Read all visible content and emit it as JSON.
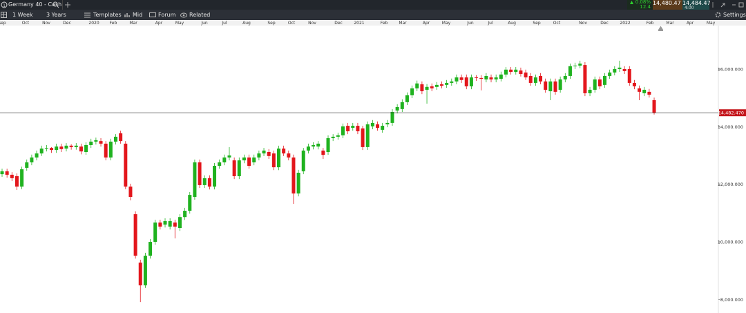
{
  "header": {
    "title": "Germany 40 - Cash",
    "quote": {
      "change": "0.08%",
      "points": "12.4",
      "sell": "14,480.47",
      "buy": "14,484.47",
      "time": "4:00"
    }
  },
  "toolbar": {
    "interval": "1 Week",
    "range": "3 Years",
    "templates": "Templates",
    "price_type": "Mid",
    "forum": "Forum",
    "related": "Related",
    "settings": "Settings"
  },
  "chart_data": {
    "type": "candlestick",
    "up_color": "#1fb21f",
    "down_color": "#e3161c",
    "open": [
      12350,
      12450,
      12330,
      12280,
      11920,
      12570,
      12760,
      12930,
      13070,
      13240,
      13260,
      13190,
      13310,
      13240,
      13340,
      13290,
      13310,
      13120,
      13360,
      13480,
      13500,
      13410,
      12930,
      13480,
      13770,
      13410,
      11920,
      10960,
      9280,
      8490,
      9520,
      10000,
      10670,
      10600,
      10530,
      10670,
      10480,
      10860,
      11080,
      11560,
      12760,
      11970,
      12210,
      11920,
      12640,
      12760,
      12930,
      12830,
      12280,
      12830,
      12930,
      12760,
      12930,
      13070,
      13120,
      13070,
      12590,
      13240,
      13070,
      12930,
      11680,
      12450,
      13170,
      13310,
      13310,
      13170,
      13120,
      13600,
      13650,
      13700,
      14030,
      13960,
      14030,
      13940,
      13290,
      14010,
      14080,
      13890,
      14080,
      14130,
      14560,
      14610,
      14850,
      15090,
      15330,
      15470,
      15280,
      15400,
      15380,
      15470,
      15450,
      15520,
      15570,
      15710,
      15710,
      15400,
      15710,
      15690,
      15640,
      15710,
      15640,
      15660,
      15810,
      15980,
      15900,
      15950,
      15880,
      15760,
      15520,
      15760,
      15570,
      15230,
      15570,
      15280,
      15640,
      15760,
      16100,
      16120,
      16140,
      15160,
      15280,
      15640,
      15450,
      15760,
      15880,
      16000,
      16000,
      16000,
      15520,
      15330,
      15160,
      15210,
      14920
    ],
    "high": [
      12540,
      12540,
      12420,
      12380,
      12610,
      12860,
      13030,
      13170,
      13340,
      13360,
      13290,
      13410,
      13410,
      13430,
      13390,
      13430,
      13410,
      13460,
      13580,
      13620,
      13600,
      13500,
      13580,
      13740,
      13860,
      13500,
      12020,
      11060,
      9380,
      9620,
      10100,
      10770,
      10770,
      10820,
      10820,
      10770,
      10960,
      11180,
      11730,
      12860,
      12860,
      12310,
      12310,
      12740,
      12860,
      13030,
      13290,
      12930,
      12930,
      13030,
      13030,
      13030,
      13170,
      13260,
      13220,
      13170,
      13340,
      13340,
      13170,
      13030,
      12500,
      13260,
      13410,
      13460,
      13500,
      13260,
      13700,
      13740,
      13790,
      14110,
      14130,
      14130,
      14130,
      14030,
      14180,
      14230,
      14180,
      14130,
      14230,
      14610,
      14780,
      14950,
      15190,
      15430,
      15600,
      15570,
      15480,
      15500,
      15550,
      15570,
      15620,
      15670,
      15810,
      15810,
      15810,
      15810,
      15790,
      15790,
      15860,
      15810,
      15810,
      15910,
      16070,
      16070,
      16070,
      16050,
      15980,
      15860,
      15810,
      15860,
      15670,
      15670,
      15670,
      15740,
      15860,
      16190,
      16220,
      16290,
      16240,
      15380,
      15740,
      15740,
      15860,
      15980,
      16100,
      16290,
      16100,
      16100,
      15620,
      15430,
      15380,
      15310,
      15010
    ],
    "low": [
      12260,
      12230,
      12110,
      11800,
      11830,
      12470,
      12660,
      12830,
      12980,
      13140,
      13090,
      13090,
      13120,
      13140,
      13200,
      13200,
      13040,
      13020,
      13260,
      13380,
      13310,
      12830,
      12830,
      13380,
      13410,
      11830,
      11440,
      9420,
      7910,
      8400,
      9420,
      9900,
      10430,
      10500,
      10430,
      10120,
      10380,
      10760,
      10980,
      11460,
      11870,
      11870,
      11820,
      11820,
      12540,
      12660,
      12830,
      12180,
      12180,
      12730,
      12540,
      12660,
      12830,
      12980,
      12880,
      12490,
      12490,
      12980,
      12830,
      11320,
      11580,
      12350,
      13070,
      13210,
      13210,
      12880,
      13020,
      13500,
      13550,
      13600,
      13740,
      13860,
      13740,
      13190,
      13190,
      13910,
      13860,
      13790,
      13980,
      14030,
      14460,
      14510,
      14750,
      14990,
      15230,
      15130,
      14800,
      15230,
      15280,
      15330,
      15350,
      15420,
      15470,
      15520,
      15300,
      15300,
      15590,
      15260,
      15540,
      15540,
      15540,
      15570,
      15710,
      15810,
      15810,
      15740,
      15620,
      15420,
      15420,
      15470,
      15180,
      14920,
      15110,
      15180,
      15540,
      15660,
      16000,
      16030,
      15060,
      15060,
      15180,
      15300,
      15350,
      15660,
      15780,
      15900,
      15830,
      15420,
      15300,
      14920,
      15060,
      15010,
      14420
    ],
    "close": [
      12450,
      12330,
      12210,
      11920,
      12520,
      12760,
      12930,
      13070,
      13240,
      13260,
      13190,
      13310,
      13220,
      13340,
      13290,
      13340,
      13140,
      13360,
      13480,
      13530,
      13410,
      12930,
      13480,
      13650,
      13500,
      11920,
      11560,
      9520,
      8490,
      9520,
      10000,
      10670,
      10530,
      10720,
      10720,
      10530,
      10860,
      11080,
      11630,
      12760,
      11970,
      12210,
      11920,
      12640,
      12760,
      12930,
      13000,
      12280,
      12830,
      12930,
      12640,
      12930,
      13070,
      13170,
      12980,
      12590,
      13240,
      13070,
      12930,
      11680,
      12400,
      13170,
      13310,
      13360,
      13410,
      13020,
      13600,
      13650,
      13700,
      14010,
      13840,
      14030,
      13840,
      13290,
      14080,
      14130,
      13960,
      14030,
      14130,
      14510,
      14680,
      14850,
      15090,
      15330,
      15500,
      15230,
      15380,
      15330,
      15450,
      15420,
      15520,
      15570,
      15710,
      15620,
      15400,
      15710,
      15690,
      15660,
      15760,
      15640,
      15710,
      15810,
      15980,
      15900,
      15980,
      15830,
      15710,
      15520,
      15710,
      15570,
      15280,
      15570,
      15210,
      15640,
      15760,
      16100,
      16120,
      16190,
      15160,
      15280,
      15640,
      15400,
      15760,
      15880,
      16000,
      16050,
      15930,
      15520,
      15400,
      15210,
      15280,
      15110,
      14480
    ],
    "xlim": [
      -0.42,
      145
    ],
    "xticks": [
      {
        "value": 0,
        "label": "Sep"
      },
      {
        "value": 4.75,
        "label": "Oct"
      },
      {
        "value": 8.95,
        "label": "Nov"
      },
      {
        "value": 13.14,
        "label": "Dec"
      },
      {
        "value": 18.6,
        "label": "2020"
      },
      {
        "value": 22.51,
        "label": "Feb"
      },
      {
        "value": 26.57,
        "label": "Mar"
      },
      {
        "value": 31.74,
        "label": "Apr"
      },
      {
        "value": 35.94,
        "label": "May"
      },
      {
        "value": 40.97,
        "label": "Jun"
      },
      {
        "value": 45.02,
        "label": "Jul"
      },
      {
        "value": 49.5,
        "label": "Aug"
      },
      {
        "value": 54.53,
        "label": "Sep"
      },
      {
        "value": 58.59,
        "label": "Oct"
      },
      {
        "value": 62.78,
        "label": "Nov"
      },
      {
        "value": 68.1,
        "label": "Dec"
      },
      {
        "value": 72.29,
        "label": "2021"
      },
      {
        "value": 77.33,
        "label": "Feb"
      },
      {
        "value": 81.1,
        "label": "Mar"
      },
      {
        "value": 85.86,
        "label": "Apr"
      },
      {
        "value": 89.91,
        "label": "May"
      },
      {
        "value": 94.8,
        "label": "Jun"
      },
      {
        "value": 98.86,
        "label": "Jul"
      },
      {
        "value": 103.2,
        "label": "Aug"
      },
      {
        "value": 108.23,
        "label": "Sep"
      },
      {
        "value": 112.28,
        "label": "Oct"
      },
      {
        "value": 117.6,
        "label": "Nov"
      },
      {
        "value": 121.93,
        "label": "Dec"
      },
      {
        "value": 126.13,
        "label": "2022"
      },
      {
        "value": 131.16,
        "label": "Feb"
      },
      {
        "value": 135.22,
        "label": "Mar"
      },
      {
        "value": 139.27,
        "label": "Apr"
      },
      {
        "value": 143.47,
        "label": "May"
      }
    ],
    "ylim": [
      7530,
      17510
    ],
    "yticks": [
      {
        "value": 8000,
        "label": "8,000.000"
      },
      {
        "value": 10000,
        "label": "10,000.000"
      },
      {
        "value": 12000,
        "label": "12,000.000"
      },
      {
        "value": 14000,
        "label": "14,000.000"
      },
      {
        "value": 16000,
        "label": "16,000.000"
      }
    ],
    "last_price": {
      "value": 14482.47,
      "label": "14,482.470"
    },
    "grid": false
  }
}
